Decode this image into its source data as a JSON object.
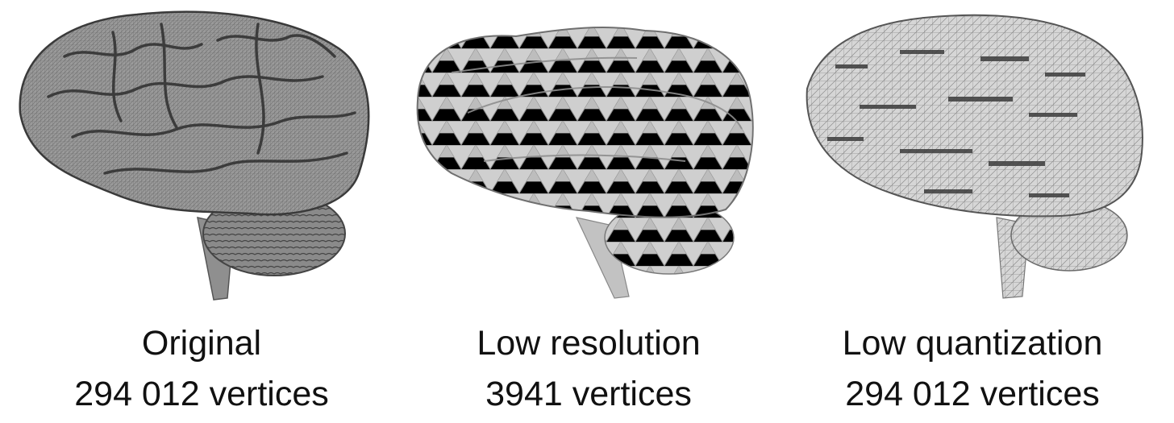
{
  "panels": [
    {
      "title": "Original",
      "subtitle": "294 012 vertices"
    },
    {
      "title": "Low resolution",
      "subtitle": "3941 vertices"
    },
    {
      "title": "Low quantization",
      "subtitle": "294 012 vertices"
    }
  ]
}
